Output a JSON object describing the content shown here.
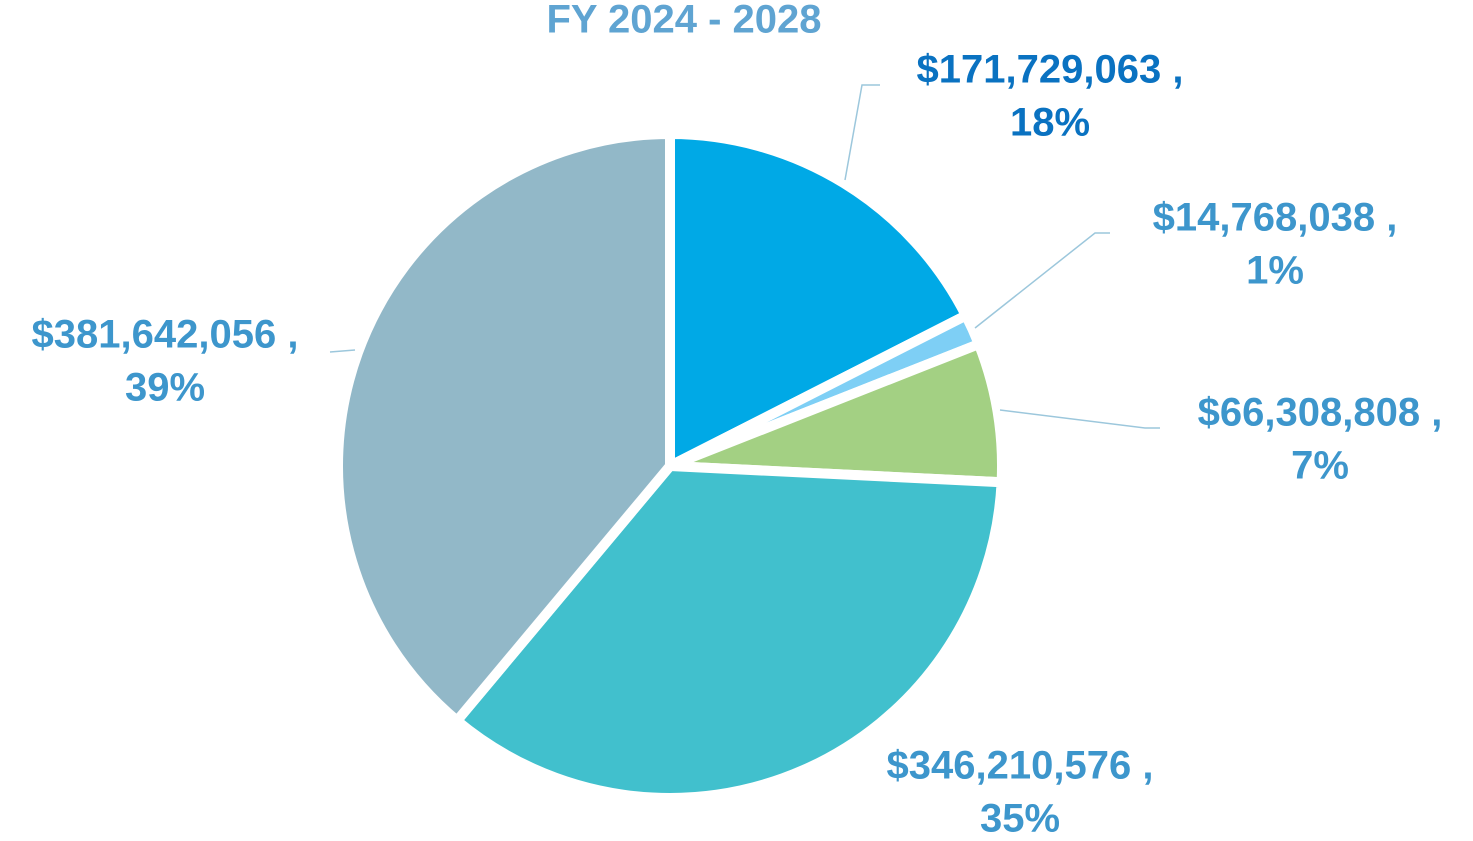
{
  "chart_data": {
    "type": "pie",
    "title": "FY 2024 - 2028",
    "values": [
      171729063,
      14768038,
      66308808,
      346210576,
      381642056
    ],
    "value_labels": [
      "$171,729,063 ,",
      "$14,768,038 ,",
      "$66,308,808 ,",
      "$346,210,576 ,",
      "$381,642,056 ,"
    ],
    "percents": [
      18,
      1,
      7,
      35,
      39
    ],
    "percent_labels": [
      "18%",
      "1%",
      "7%",
      "35%",
      "39%"
    ],
    "colors": [
      "#00a9e6",
      "#7ecff5",
      "#a3d083",
      "#41c0cd",
      "#92b8c8"
    ],
    "label_colors": [
      "#0a72c1",
      "#3d96cc",
      "#3d96cc",
      "#3d96cc",
      "#3d96cc"
    ]
  }
}
